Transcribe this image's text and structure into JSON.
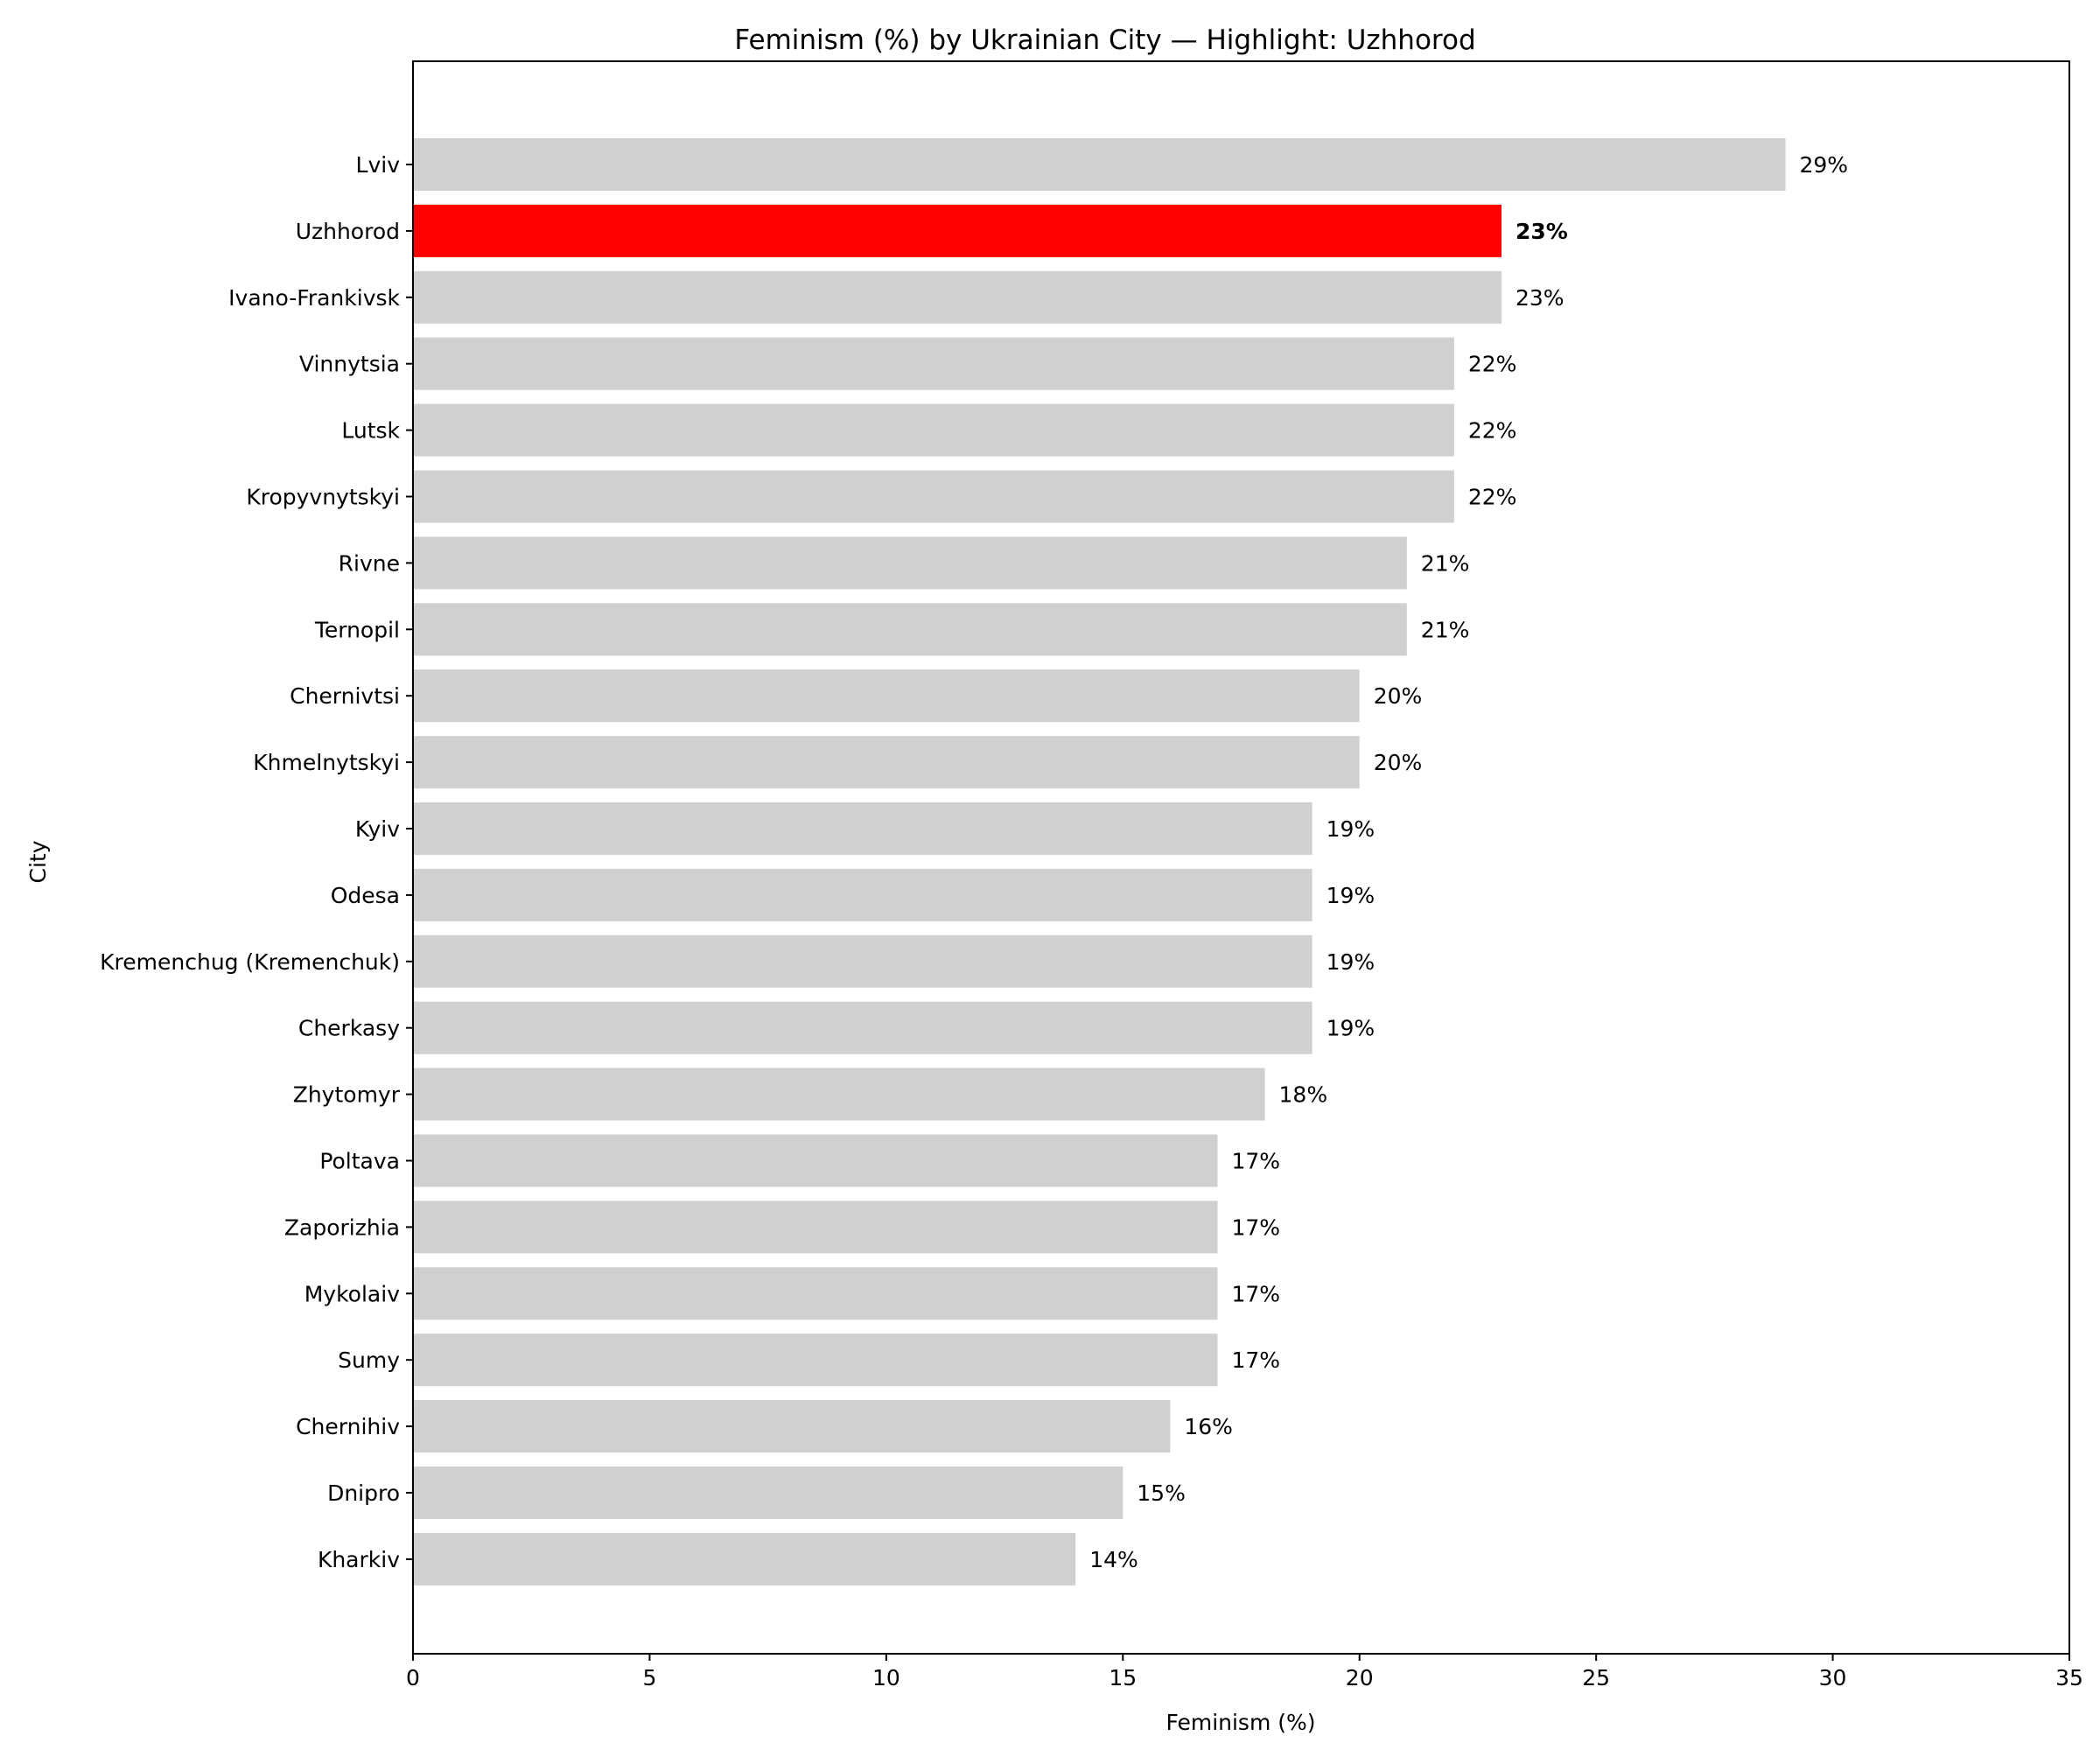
{
  "chart_data": {
    "type": "bar",
    "orientation": "horizontal",
    "title": "Feminism (%) by Ukrainian City — Highlight: Uzhhorod",
    "xlabel": "Feminism (%)",
    "ylabel": "City",
    "xlim": [
      0,
      35
    ],
    "xticks": [
      "0",
      "5",
      "10",
      "15",
      "20",
      "25",
      "30",
      "35"
    ],
    "grid": false,
    "highlight": "Uzhhorod",
    "colors": {
      "default": "#d0d0d0",
      "highlight": "#ff0000"
    },
    "categories": [
      "Lviv",
      "Uzhhorod",
      "Ivano-Frankivsk",
      "Vinnytsia",
      "Lutsk",
      "Kropyvnytskyi",
      "Rivne",
      "Ternopil",
      "Chernivtsi",
      "Khmelnytskyi",
      "Kyiv",
      "Odesa",
      "Kremenchug (Kremenchuk)",
      "Cherkasy",
      "Zhytomyr",
      "Poltava",
      "Zaporizhia",
      "Mykolaiv",
      "Sumy",
      "Chernihiv",
      "Dnipro",
      "Kharkiv"
    ],
    "values": [
      29,
      23,
      23,
      22,
      22,
      22,
      21,
      21,
      20,
      20,
      19,
      19,
      19,
      19,
      18,
      17,
      17,
      17,
      17,
      16,
      15,
      14
    ],
    "value_labels": [
      "29%",
      "23%",
      "23%",
      "22%",
      "22%",
      "22%",
      "21%",
      "21%",
      "20%",
      "20%",
      "19%",
      "19%",
      "19%",
      "19%",
      "18%",
      "17%",
      "17%",
      "17%",
      "17%",
      "16%",
      "15%",
      "14%"
    ]
  }
}
